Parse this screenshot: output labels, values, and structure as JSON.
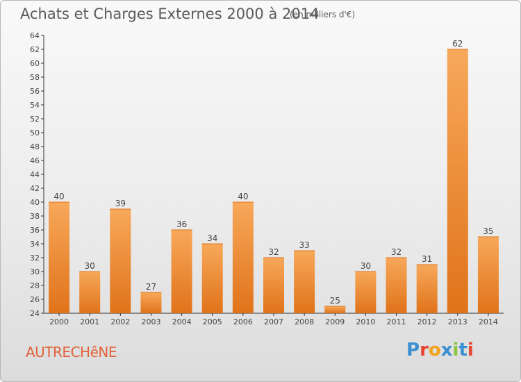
{
  "header": {
    "title": "Achats et Charges Externes 2000 à 2014",
    "unit": "(en milliers d'€)"
  },
  "footer": {
    "commune": "AUTRECHêNE",
    "brand": {
      "letters": [
        "P",
        "r",
        "o",
        "x",
        "i",
        "t",
        "i"
      ],
      "colors": [
        "#3a8fd1",
        "#e8432e",
        "#f3a21b",
        "#3a8fd1",
        "#8cc63f",
        "#3a8fd1",
        "#e8432e"
      ]
    }
  },
  "colors": {
    "bar": "#f08a2c",
    "bar_dark": "#e0731a",
    "bar_light": "#f7a85a",
    "text": "#444444"
  },
  "chart_data": {
    "type": "bar",
    "title": "Achats et Charges Externes 2000 à 2014",
    "subtitle": "(en milliers d'€)",
    "xlabel": "",
    "ylabel": "",
    "categories": [
      "2000",
      "2001",
      "2002",
      "2003",
      "2004",
      "2005",
      "2006",
      "2007",
      "2008",
      "2009",
      "2010",
      "2011",
      "2012",
      "2013",
      "2014"
    ],
    "values": [
      40,
      30,
      39,
      27,
      36,
      34,
      40,
      32,
      33,
      25,
      30,
      32,
      31,
      62,
      35
    ],
    "ylim": [
      24,
      64
    ],
    "yticks": [
      24,
      26,
      28,
      30,
      32,
      34,
      36,
      38,
      40,
      42,
      44,
      46,
      48,
      50,
      52,
      54,
      56,
      58,
      60,
      62,
      64
    ],
    "grid": false,
    "legend": "none"
  }
}
